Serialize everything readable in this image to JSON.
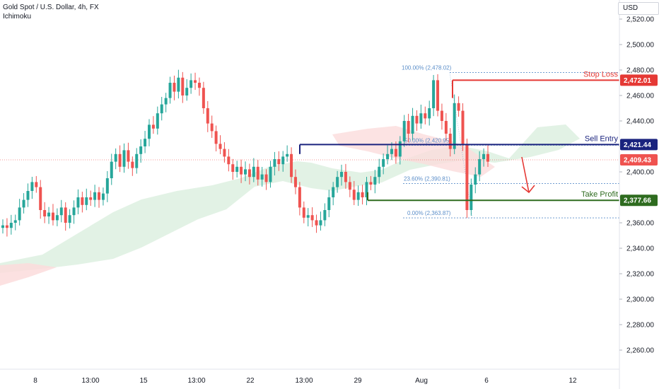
{
  "header": {
    "title": "Gold Spot / U.S. Dollar, 4h, FX",
    "indicator": "Ichimoku",
    "currency": "USD"
  },
  "colors": {
    "up": "#26a69a",
    "down": "#ef5350",
    "stop": "#e53935",
    "entry": "#1a237e",
    "take_profit": "#2e6b1f",
    "fib": "#5b8ec9",
    "current_price": "#ef5350",
    "cloud_bull": "#d8eedc",
    "cloud_bear": "#fbdcdc"
  },
  "chart_data": {
    "type": "candlestick",
    "title": "Gold Spot / U.S. Dollar, 4h, FX",
    "y_ticks": [
      2260,
      2280,
      2300,
      2320,
      2340,
      2360,
      2380,
      2400,
      2420,
      2440,
      2460,
      2480,
      2500,
      2520
    ],
    "y_tick_labels": [
      "2,260.00",
      "2,280.00",
      "2,300.00",
      "2,320.00",
      "2,340.00",
      "2,360.00",
      "2,380.00",
      "2,400.00",
      "2,420.00",
      "2,440.00",
      "2,460.00",
      "2,480.00",
      "2,500.00",
      "2,520.00"
    ],
    "ylim": [
      2245,
      2535
    ],
    "x_labels": [
      "8",
      "13:00",
      "15",
      "13:00",
      "22",
      "13:00",
      "29",
      "Aug",
      "6",
      "12"
    ],
    "grid": false,
    "closes": [
      2358,
      2356,
      2360,
      2362,
      2372,
      2378,
      2385,
      2392,
      2388,
      2370,
      2365,
      2368,
      2362,
      2366,
      2372,
      2360,
      2366,
      2372,
      2380,
      2374,
      2380,
      2378,
      2384,
      2378,
      2383,
      2395,
      2408,
      2414,
      2404,
      2417,
      2408,
      2403,
      2414,
      2420,
      2426,
      2437,
      2434,
      2446,
      2453,
      2458,
      2470,
      2463,
      2474,
      2460,
      2466,
      2472,
      2470,
      2466,
      2450,
      2438,
      2432,
      2422,
      2418,
      2412,
      2406,
      2400,
      2404,
      2398,
      2402,
      2396,
      2404,
      2394,
      2398,
      2392,
      2404,
      2410,
      2406,
      2412,
      2414,
      2396,
      2388,
      2372,
      2364,
      2366,
      2362,
      2358,
      2362,
      2370,
      2380,
      2388,
      2396,
      2400,
      2392,
      2386,
      2378,
      2384,
      2380,
      2392,
      2390,
      2396,
      2404,
      2410,
      2414,
      2418,
      2412,
      2424,
      2440,
      2430,
      2444,
      2438,
      2446,
      2442,
      2450,
      2472,
      2448,
      2440,
      2430,
      2418,
      2454,
      2448,
      2422,
      2370,
      2390,
      2398,
      2410,
      2414,
      2408
    ],
    "stop_loss": {
      "label": "Stop Loss",
      "value": 2472.01,
      "value_label": "2,472.01"
    },
    "sell_entry": {
      "label": "Sell Entry",
      "value": 2421.44,
      "value_label": "2,421.44"
    },
    "take_profit": {
      "label": "Take Profit",
      "value": 2377.66,
      "value_label": "2,377.66"
    },
    "current_price": {
      "value": 2409.43,
      "value_label": "2,409.43"
    },
    "fibonacci": [
      {
        "label": "100.00% (2,478.02)",
        "value": 2478.02
      },
      {
        "label": "50.00% (2,420.95)",
        "value": 2420.95
      },
      {
        "label": "23.60% (2,390.81)",
        "value": 2390.81
      },
      {
        "label": "0.00% (2,363.87)",
        "value": 2363.87
      }
    ]
  }
}
